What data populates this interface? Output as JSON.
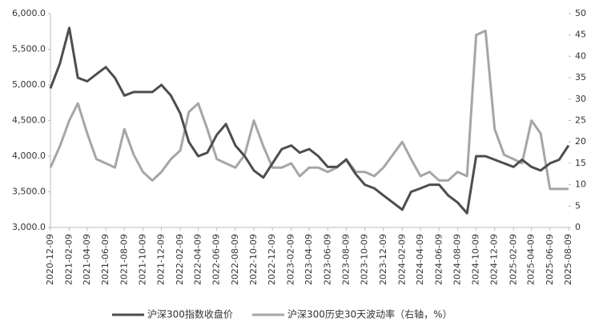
{
  "chart_data": {
    "type": "line",
    "x": [
      "2020-12-09",
      "2021-01-09",
      "2021-02-09",
      "2021-03-09",
      "2021-04-09",
      "2021-05-09",
      "2021-06-09",
      "2021-07-09",
      "2021-08-09",
      "2021-09-09",
      "2021-10-09",
      "2021-11-09",
      "2021-12-09",
      "2022-01-09",
      "2022-02-09",
      "2022-03-09",
      "2022-04-09",
      "2022-05-09",
      "2022-06-09",
      "2022-07-09",
      "2022-08-09",
      "2022-09-09",
      "2022-10-09",
      "2022-11-09",
      "2022-12-09",
      "2023-01-09",
      "2023-02-09",
      "2023-03-09",
      "2023-04-09",
      "2023-05-09",
      "2023-06-09",
      "2023-07-09",
      "2023-08-09",
      "2023-09-09",
      "2023-10-09",
      "2023-11-09",
      "2023-12-09",
      "2024-01-09",
      "2024-02-09",
      "2024-03-09",
      "2024-04-09",
      "2024-05-09",
      "2024-06-09",
      "2024-07-09",
      "2024-08-09",
      "2024-09-09",
      "2024-10-09",
      "2024-11-09",
      "2024-12-09",
      "2025-01-09",
      "2025-02-09",
      "2025-03-09",
      "2025-04-09",
      "2025-05-09",
      "2025-06-09",
      "2025-07-09",
      "2025-08-09"
    ],
    "series": [
      {
        "name": "沪深300指数收盘价",
        "color": "#4d4d4d",
        "values": [
          4950,
          5300,
          5800,
          5100,
          5050,
          5150,
          5250,
          5100,
          4850,
          4900,
          4900,
          4900,
          5000,
          4850,
          4600,
          4200,
          4000,
          4050,
          4300,
          4450,
          4150,
          4000,
          3800,
          3700,
          3900,
          4100,
          4150,
          4050,
          4100,
          4000,
          3850,
          3850,
          3950,
          3750,
          3600,
          3550,
          3450,
          3350,
          3250,
          3500,
          3550,
          3600,
          3600,
          3450,
          3350,
          3200,
          4000,
          4000,
          3950,
          3900,
          3850,
          3950,
          3850,
          3800,
          3900,
          3950,
          4150
        ]
      },
      {
        "name": "沪深300历史30天波动率（右轴，%）",
        "color": "#a6a6a6",
        "axis": "y2",
        "values": [
          14,
          19,
          25,
          29,
          22,
          16,
          15,
          14,
          23,
          17,
          13,
          11,
          13,
          16,
          18,
          27,
          29,
          23,
          16,
          15,
          14,
          17,
          25,
          19,
          14,
          14,
          15,
          12,
          14,
          14,
          13,
          14,
          16,
          13,
          13,
          12,
          14,
          17,
          20,
          16,
          12,
          13,
          11,
          11,
          13,
          12,
          45,
          46,
          23,
          17,
          16,
          15,
          25,
          22,
          9,
          9,
          9
        ]
      }
    ],
    "ylim": [
      3000,
      6000
    ],
    "yticks": [
      {
        "value": 3000,
        "label": "3,000.0"
      },
      {
        "value": 3500,
        "label": "3,500.0"
      },
      {
        "value": 4000,
        "label": "4,000.0"
      },
      {
        "value": 4500,
        "label": "4,500.0"
      },
      {
        "value": 5000,
        "label": "5,000.0"
      },
      {
        "value": 5500,
        "label": "5,500.0"
      },
      {
        "value": 6000,
        "label": "6,000.0"
      }
    ],
    "y2lim": [
      0,
      50
    ],
    "y2ticks": [
      0,
      5,
      10,
      15,
      20,
      25,
      30,
      35,
      40,
      45,
      50
    ],
    "xticks": [
      "2020-12-09",
      "2021-02-09",
      "2021-04-09",
      "2021-06-09",
      "2021-08-09",
      "2021-10-09",
      "2021-12-09",
      "2022-02-09",
      "2022-04-09",
      "2022-06-09",
      "2022-08-09",
      "2022-10-09",
      "2022-12-09",
      "2023-02-09",
      "2023-04-09",
      "2023-06-09",
      "2023-08-09",
      "2023-10-09",
      "2023-12-09",
      "2024-02-09",
      "2024-04-09",
      "2024-06-09",
      "2024-08-09",
      "2024-10-09",
      "2024-12-09",
      "2025-02-09",
      "2025-04-09",
      "2025-06-09",
      "2025-08-09"
    ]
  }
}
